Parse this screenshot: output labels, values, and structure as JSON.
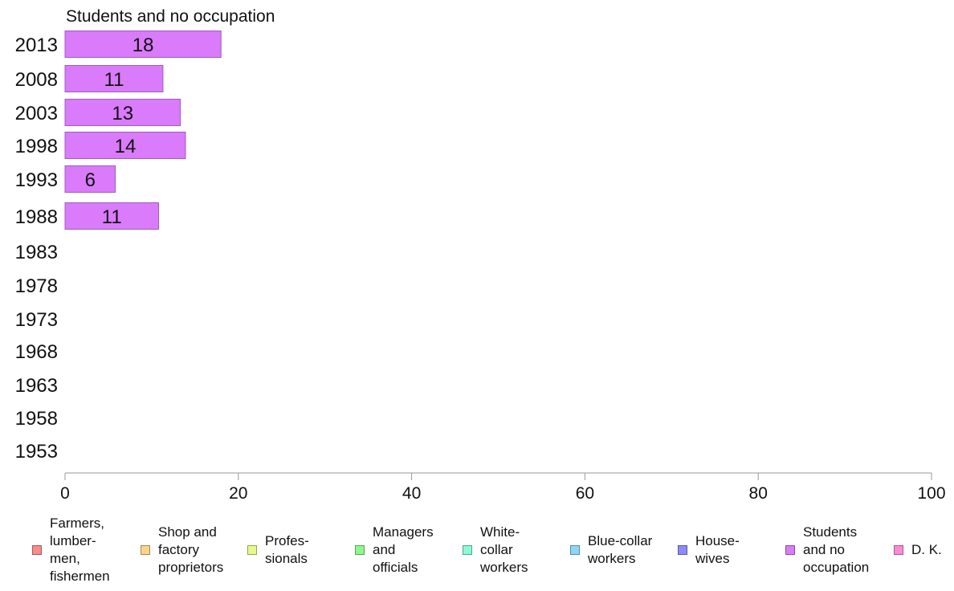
{
  "chart_data": {
    "type": "bar",
    "orientation": "horizontal",
    "title": "Students and no occupation",
    "categories": [
      "2013",
      "2008",
      "2003",
      "1998",
      "1993",
      "1988",
      "1983",
      "1978",
      "1973",
      "1968",
      "1963",
      "1958",
      "1953"
    ],
    "series": [
      {
        "name": "Students and no occupation",
        "color": "#d97bfa",
        "values": [
          18,
          11.3,
          13.3,
          13.9,
          5.8,
          10.8,
          null,
          null,
          null,
          null,
          null,
          null,
          null
        ],
        "labels": [
          "18",
          "11",
          "13",
          "14",
          "6",
          "11",
          "",
          "",
          "",
          "",
          "",
          "",
          ""
        ]
      }
    ],
    "xlim": [
      0,
      100
    ],
    "xticks": [
      "0",
      "20",
      "40",
      "60",
      "80",
      "100"
    ],
    "xlabel": "",
    "ylabel": "",
    "grid": false,
    "legend_position": "bottom",
    "legend": [
      {
        "label": "Farmers,\nlumber-\nmen,\nfishermen",
        "color": "#f98b8b"
      },
      {
        "label": "Shop and\nfactory\nproprietors",
        "color": "#fbd38b"
      },
      {
        "label": "Profes-\nsionals",
        "color": "#e6f98b"
      },
      {
        "label": "Managers\nand\nofficials",
        "color": "#8bf98b"
      },
      {
        "label": "White-\ncollar\nworkers",
        "color": "#8bf9d6"
      },
      {
        "label": "Blue-collar\nworkers",
        "color": "#8bd6fa"
      },
      {
        "label": "House-\nwives",
        "color": "#8b8bf9"
      },
      {
        "label": "Students\nand no\noccupation",
        "color": "#d97bfa"
      },
      {
        "label": "D. K.",
        "color": "#f98bd9"
      }
    ]
  }
}
